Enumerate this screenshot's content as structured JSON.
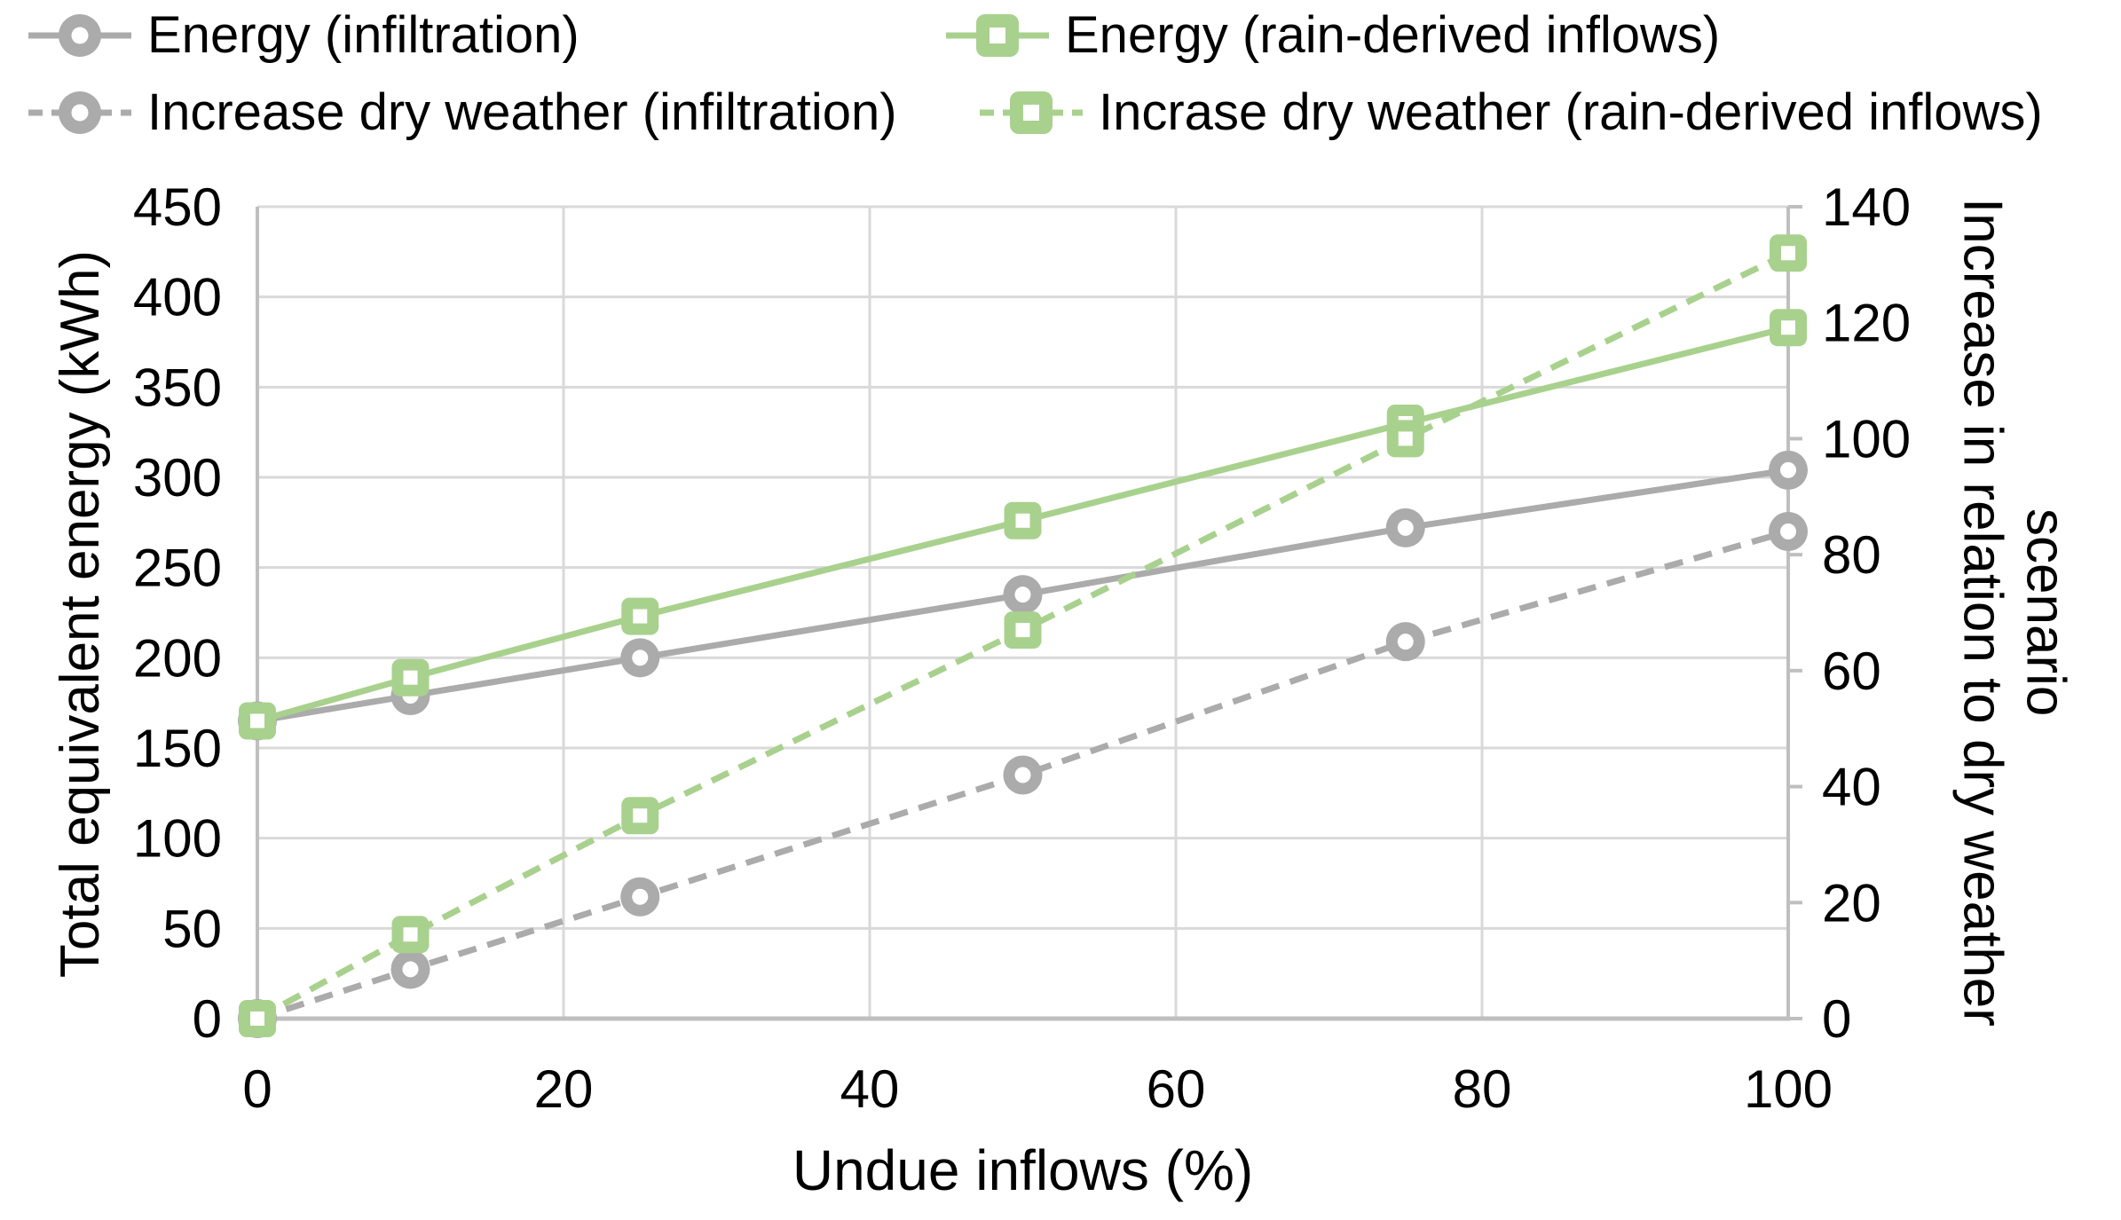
{
  "chart_data": {
    "type": "line",
    "title": "",
    "x": [
      0,
      10,
      25,
      50,
      75,
      100
    ],
    "xlabel": "Undue inflows (%)",
    "x_axis": {
      "min": 0,
      "max": 100
    },
    "x_ticks": [
      0,
      20,
      40,
      60,
      80,
      100
    ],
    "left_axis": {
      "title": "Total equivalent energy (kWh)",
      "min": 0,
      "max": 450,
      "step": 50
    },
    "right_axis": {
      "title": "Increase in relation to dry weather scenario",
      "title_lines": [
        "Increase in relation to dry weather",
        "scenario"
      ],
      "min": 0,
      "max": 140,
      "step": 20
    },
    "series": [
      {
        "id": "energy-infiltration",
        "name": "Energy (infiltration)",
        "axis": "left",
        "line": "solid",
        "marker": "circle",
        "color": "#ABABAB",
        "values": [
          165,
          179,
          200,
          235,
          272,
          304
        ]
      },
      {
        "id": "energy-rain-derived-inflows",
        "name": "Energy (rain-derived inflows)",
        "axis": "left",
        "line": "solid",
        "marker": "square",
        "color": "#A9D18E",
        "values": [
          165,
          189,
          223,
          276,
          330,
          383
        ]
      },
      {
        "id": "increase-dry-weather-infiltration",
        "name": "Increase dry weather (infiltration)",
        "axis": "right",
        "line": "dashed",
        "marker": "circle",
        "color": "#ABABAB",
        "values": [
          0,
          8.5,
          21,
          42,
          65,
          84
        ]
      },
      {
        "id": "increase-dry-weather-rain-derived-inflows",
        "name": "Incrase dry weather (rain-derived inflows)",
        "axis": "right",
        "line": "dashed",
        "marker": "square",
        "color": "#A9D18E",
        "values": [
          0,
          14.5,
          35,
          67,
          100,
          132
        ]
      }
    ],
    "legend_position": "top",
    "grid": true,
    "colors": {
      "gridline": "#D9D9D9",
      "axis_line": "#BFBFBF",
      "text": "#000000",
      "background": "#FFFFFF"
    }
  }
}
